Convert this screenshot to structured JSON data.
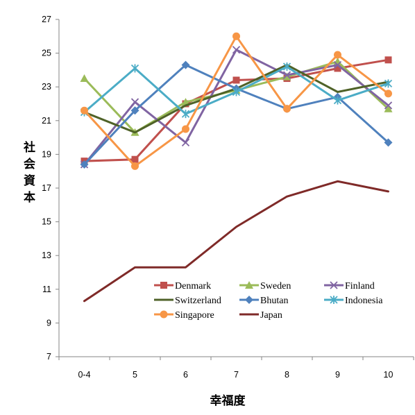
{
  "chart_data": {
    "type": "line",
    "xlabel": "幸福度",
    "ylabel": "社会資本",
    "categories": [
      "0-4",
      "5",
      "6",
      "7",
      "8",
      "9",
      "10"
    ],
    "ylim": [
      7,
      27
    ],
    "yticks": [
      7,
      9,
      11,
      13,
      15,
      17,
      19,
      21,
      23,
      25,
      27
    ],
    "grid": false,
    "legend_position": "inside-bottom-center",
    "series": [
      {
        "name": "Denmark",
        "color": "#C0504D",
        "marker": "square",
        "values": [
          18.6,
          18.7,
          22.0,
          23.4,
          23.5,
          24.1,
          24.6
        ]
      },
      {
        "name": "Sweden",
        "color": "#9BBB59",
        "marker": "triangle",
        "values": [
          23.5,
          20.3,
          22.1,
          22.8,
          23.6,
          24.5,
          21.7
        ]
      },
      {
        "name": "Finland",
        "color": "#8064A2",
        "marker": "x",
        "values": [
          18.4,
          22.1,
          19.7,
          25.2,
          23.7,
          24.3,
          21.9
        ]
      },
      {
        "name": "Switzerland",
        "color": "#4F6228",
        "marker": "none",
        "values": [
          21.5,
          20.3,
          21.9,
          22.9,
          24.3,
          22.7,
          23.3
        ]
      },
      {
        "name": "Bhutan",
        "color": "#4F81BD",
        "marker": "diamond",
        "values": [
          18.4,
          21.6,
          24.3,
          22.9,
          21.7,
          22.4,
          19.7
        ]
      },
      {
        "name": "Indonesia",
        "color": "#4BACC6",
        "marker": "asterisk",
        "values": [
          21.5,
          24.1,
          21.4,
          22.7,
          24.2,
          22.2,
          23.2
        ]
      },
      {
        "name": "Singapore",
        "color": "#F79646",
        "marker": "circle",
        "values": [
          21.6,
          18.3,
          20.5,
          26.0,
          21.7,
          24.9,
          22.6
        ]
      },
      {
        "name": "Japan",
        "color": "#7F2A28",
        "marker": "none",
        "values": [
          10.3,
          12.3,
          12.3,
          14.7,
          16.5,
          17.4,
          16.8
        ]
      }
    ]
  }
}
